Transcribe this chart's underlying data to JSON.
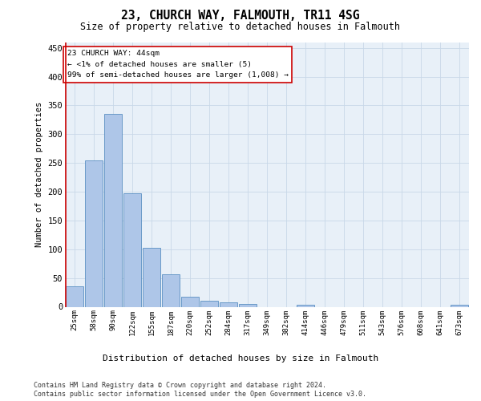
{
  "title": "23, CHURCH WAY, FALMOUTH, TR11 4SG",
  "subtitle": "Size of property relative to detached houses in Falmouth",
  "xlabel": "Distribution of detached houses by size in Falmouth",
  "ylabel": "Number of detached properties",
  "footer_line1": "Contains HM Land Registry data © Crown copyright and database right 2024.",
  "footer_line2": "Contains public sector information licensed under the Open Government Licence v3.0.",
  "annotation_line1": "23 CHURCH WAY: 44sqm",
  "annotation_line2": "← <1% of detached houses are smaller (5)",
  "annotation_line3": "99% of semi-detached houses are larger (1,008) →",
  "bar_color": "#aec6e8",
  "bar_edge_color": "#5a8fc2",
  "highlight_color": "#cc0000",
  "highlight_bar_index": 0,
  "bins": [
    "25sqm",
    "58sqm",
    "90sqm",
    "122sqm",
    "155sqm",
    "187sqm",
    "220sqm",
    "252sqm",
    "284sqm",
    "317sqm",
    "349sqm",
    "382sqm",
    "414sqm",
    "446sqm",
    "479sqm",
    "511sqm",
    "543sqm",
    "576sqm",
    "608sqm",
    "641sqm",
    "673sqm"
  ],
  "values": [
    35,
    255,
    335,
    197,
    103,
    57,
    18,
    10,
    7,
    5,
    0,
    0,
    4,
    0,
    0,
    0,
    0,
    0,
    0,
    0,
    4
  ],
  "ylim": [
    0,
    460
  ],
  "yticks": [
    0,
    50,
    100,
    150,
    200,
    250,
    300,
    350,
    400,
    450
  ],
  "background_color": "#ffffff",
  "plot_bg_color": "#e8f0f8",
  "grid_color": "#c8d8e8"
}
